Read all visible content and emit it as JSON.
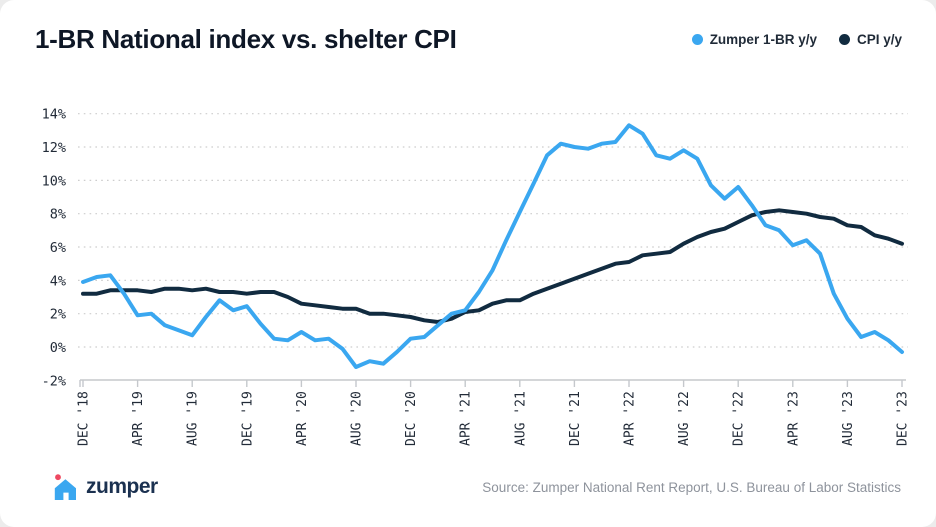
{
  "title": "1-BR National index vs. shelter CPI",
  "legend": {
    "items": [
      {
        "label": "Zumper 1-BR y/y",
        "color": "#3aa7f0"
      },
      {
        "label": "CPI y/y",
        "color": "#112b40"
      }
    ]
  },
  "footer": {
    "logo_text": "zumper",
    "source": "Source: Zumper National Rent Report, U.S. Bureau of Labor Statistics"
  },
  "colors": {
    "zumper_blue": "#3aa7f0",
    "cpi_navy": "#112b40",
    "grid": "#cdcdcd",
    "axis": "#c5c8cc",
    "axis_text": "#222b38",
    "logo_pink": "#ee4961",
    "logo_navy": "#1b3150"
  },
  "chart_data": {
    "type": "line",
    "title": "1-BR National index vs. shelter CPI",
    "xlabel": "",
    "ylabel": "",
    "ylim": [
      -2,
      14
    ],
    "y_tick_step": 2,
    "y_tick_labels": [
      "-2%",
      "0%",
      "2%",
      "4%",
      "6%",
      "8%",
      "10%",
      "12%",
      "14%"
    ],
    "grid": "dotted horizontal",
    "legend_position": "top-right",
    "x_start": "DEC '18",
    "x_end": "DEC '23",
    "x_interval": "monthly",
    "x_tick_every_months": 4,
    "x_tick_labels": [
      "DEC '18",
      "APR '19",
      "AUG '19",
      "DEC '19",
      "APR '20",
      "AUG '20",
      "DEC '20",
      "APR '21",
      "AUG '21",
      "DEC '21",
      "APR '22",
      "AUG '22",
      "DEC '22",
      "APR '23",
      "AUG '23",
      "DEC '23"
    ],
    "series": [
      {
        "name": "Zumper 1-BR y/y",
        "color": "#3aa7f0",
        "values": [
          3.9,
          4.2,
          4.3,
          3.2,
          1.9,
          2.0,
          1.3,
          1.0,
          0.7,
          1.8,
          2.8,
          2.2,
          2.45,
          1.4,
          0.5,
          0.4,
          0.9,
          0.4,
          0.5,
          -0.1,
          -1.2,
          -0.85,
          -1.0,
          -0.3,
          0.5,
          0.6,
          1.3,
          2.0,
          2.2,
          3.3,
          4.6,
          6.4,
          8.1,
          9.8,
          11.5,
          12.2,
          12.0,
          11.9,
          12.2,
          12.3,
          13.3,
          12.8,
          11.5,
          11.3,
          11.8,
          11.3,
          9.7,
          8.9,
          9.6,
          8.5,
          7.3,
          7.0,
          6.1,
          6.4,
          5.6,
          3.2,
          1.7,
          0.6,
          0.9,
          0.4,
          -0.3
        ]
      },
      {
        "name": "CPI y/y",
        "color": "#112b40",
        "values": [
          3.2,
          3.2,
          3.4,
          3.4,
          3.4,
          3.3,
          3.5,
          3.5,
          3.4,
          3.5,
          3.3,
          3.3,
          3.2,
          3.3,
          3.3,
          3.0,
          2.6,
          2.5,
          2.4,
          2.3,
          2.3,
          2.0,
          2.0,
          1.9,
          1.8,
          1.6,
          1.5,
          1.7,
          2.1,
          2.2,
          2.6,
          2.8,
          2.8,
          3.2,
          3.5,
          3.8,
          4.1,
          4.4,
          4.7,
          5.0,
          5.1,
          5.5,
          5.6,
          5.7,
          6.2,
          6.6,
          6.9,
          7.1,
          7.5,
          7.9,
          8.1,
          8.2,
          8.1,
          8.0,
          7.8,
          7.7,
          7.3,
          7.2,
          6.7,
          6.5,
          6.2
        ]
      }
    ]
  }
}
